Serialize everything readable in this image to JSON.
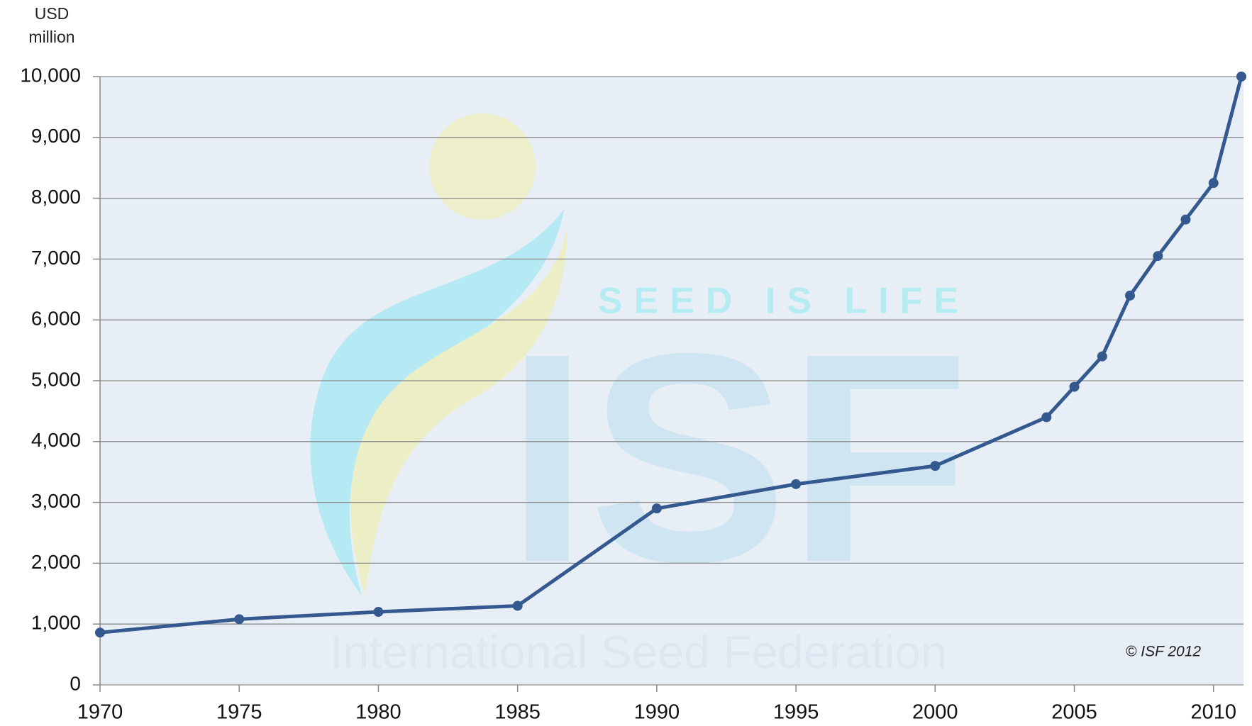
{
  "chart_data": {
    "type": "line",
    "y_axis_label": [
      "USD",
      "million"
    ],
    "annotation": "© ISF 2012",
    "watermark": {
      "tagline": "SEED IS LIFE",
      "logo": "ISF",
      "name": "International Seed Federation"
    },
    "x": [
      1970,
      1975,
      1980,
      1985,
      1990,
      1995,
      2000,
      2004,
      2005,
      2006,
      2007,
      2008,
      2009,
      2010,
      2011
    ],
    "series": [
      {
        "color": "#34598f",
        "values": [
          860,
          1080,
          1200,
          1300,
          2900,
          3300,
          3600,
          4400,
          4900,
          5400,
          6400,
          7050,
          7650,
          8250,
          10000
        ]
      }
    ],
    "xlim": [
      1970,
      2011
    ],
    "xticks": [
      1970,
      1975,
      1980,
      1985,
      1990,
      1995,
      2000,
      2005,
      2010
    ],
    "ylim": [
      0,
      10000
    ],
    "yticks": [
      0,
      {
        "value": 1000,
        "label": "1,000"
      },
      {
        "value": 2000,
        "label": "2,000"
      },
      {
        "value": 3000,
        "label": "3,000"
      },
      {
        "value": 4000,
        "label": "4,000"
      },
      {
        "value": 5000,
        "label": "5,000"
      },
      {
        "value": 6000,
        "label": "6,000"
      },
      {
        "value": 7000,
        "label": "7,000"
      },
      {
        "value": 8000,
        "label": "8,000"
      },
      {
        "value": 9000,
        "label": "9,000"
      },
      {
        "value": 10000,
        "label": "10,000"
      }
    ],
    "grid": true
  }
}
